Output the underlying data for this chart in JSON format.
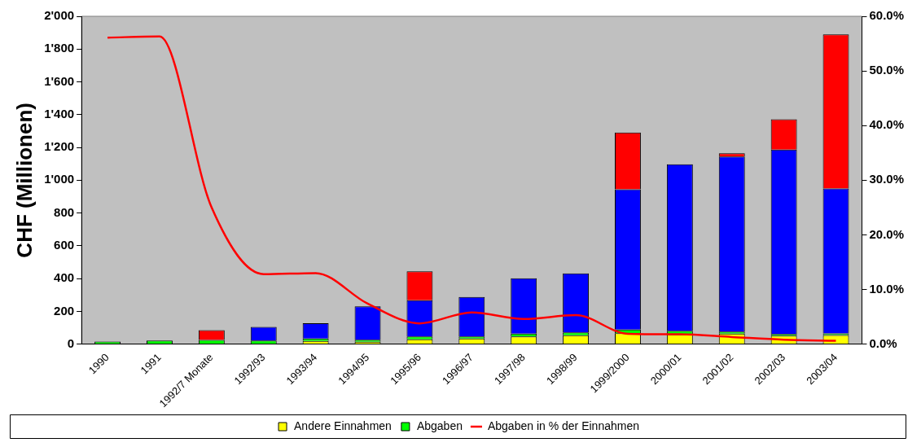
{
  "chart_data": {
    "type": "bar",
    "stacked": true,
    "ylabel": "CHF (Millionen)",
    "legend": "bottom",
    "grid": false,
    "marker": "none",
    "categories": [
      "1990",
      "1991",
      "1992/7 Monate",
      "1992/93",
      "1993/94",
      "1994/95",
      "1995/96",
      "1996/97",
      "1997/98",
      "1998/99",
      "1999/2000",
      "2000/01",
      "2001/02",
      "2002/03",
      "2003/04"
    ],
    "series": [
      {
        "name": "Andere Einnahmen",
        "color": "#ffff00",
        "values": [
          null,
          null,
          null,
          null,
          19,
          14,
          29,
          34,
          47,
          54,
          67,
          59,
          64,
          52,
          55
        ]
      },
      {
        "name": "Abgaben",
        "color": "#00ff00",
        "values": [
          15,
          22,
          25,
          22,
          15,
          13,
          18,
          13,
          17,
          18,
          22,
          23,
          13,
          10,
          10
        ]
      },
      {
        "color": "#0000ff",
        "values": [
          null,
          null,
          null,
          83,
          93,
          204,
          221,
          241,
          338,
          360,
          856,
          1015,
          1067,
          1125,
          885
        ]
      },
      {
        "color": "#ff0000",
        "values": [
          null,
          null,
          60,
          null,
          null,
          null,
          176,
          null,
          null,
          null,
          346,
          null,
          20,
          185,
          939
        ]
      },
      {
        "name": "Abgaben in % der Einnahmen",
        "type": "line",
        "axis": "y2",
        "color": "#ff0000",
        "values": [
          56.1,
          56.3,
          25,
          12.8,
          13,
          7.4,
          3.8,
          5.8,
          4.6,
          5.3,
          1.9,
          1.8,
          1.3,
          0.8,
          0.6
        ]
      }
    ],
    "ylim": [
      0,
      2000
    ],
    "yticks": [
      0,
      200,
      400,
      600,
      800,
      {
        "value": 1000,
        "label": "1'000"
      },
      {
        "value": 1200,
        "label": "1'200"
      },
      {
        "value": 1400,
        "label": "1'400"
      },
      {
        "value": 1600,
        "label": "1'600"
      },
      {
        "value": 1800,
        "label": "1'800"
      },
      {
        "value": 2000,
        "label": "2'000"
      }
    ],
    "y2lim": [
      0,
      60
    ],
    "y2ticks": [
      {
        "value": 0,
        "label": "0.0%"
      },
      {
        "value": 10,
        "label": "10.0%"
      },
      {
        "value": 20,
        "label": "20.0%"
      },
      {
        "value": 30,
        "label": "30.0%"
      },
      {
        "value": 40,
        "label": "40.0%"
      },
      {
        "value": 50,
        "label": "50.0%"
      },
      {
        "value": 60,
        "label": "60.0%"
      }
    ]
  }
}
